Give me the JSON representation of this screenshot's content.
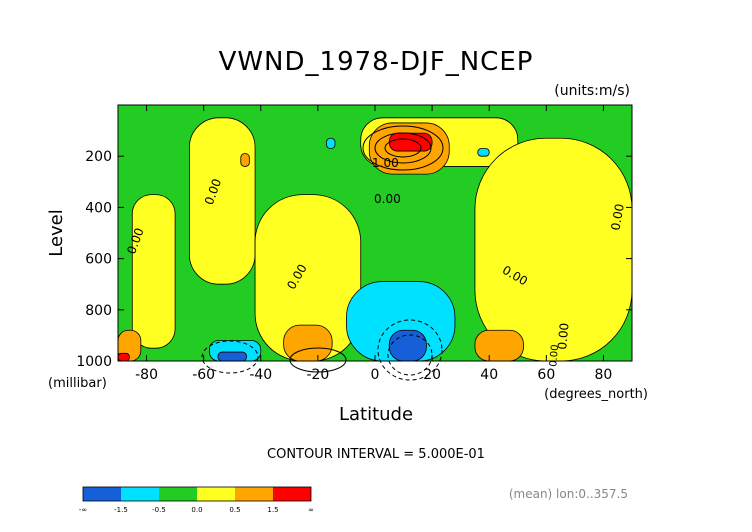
{
  "chart_data": {
    "type": "heatmap",
    "subtype": "filled-contour",
    "title": "VWND_1978-DJF_NCEP",
    "units_label": "(units:m/s)",
    "xlabel": "Latitude",
    "x_units_label": "(degrees_north)",
    "ylabel": "Level",
    "y_units_label": "(millibar)",
    "xlim": [
      -90,
      90
    ],
    "ylim": [
      1000,
      0
    ],
    "x_ticks": [
      -80,
      -60,
      -40,
      -20,
      0,
      20,
      40,
      60,
      80
    ],
    "x_tick_labels": [
      "-80",
      "-60",
      "-40",
      "-20",
      "0",
      "20",
      "40",
      "60",
      "80"
    ],
    "y_ticks": [
      200,
      400,
      600,
      800,
      1000
    ],
    "y_tick_labels": [
      "200",
      "400",
      "600",
      "800",
      "1000"
    ],
    "contour_interval_text": "CONTOUR INTERVAL = 5.000E-01",
    "footnote": "(mean) lon:0..357.5",
    "contour_labels": [
      "1.00",
      "0.00",
      "0.00",
      "0.00",
      "0.00",
      "0.00",
      "0.00",
      "0.00",
      "0.00",
      "0.00"
    ],
    "colorbar": {
      "colors": [
        "#1560d8",
        "#00e0ff",
        "#22cc22",
        "#ffff22",
        "#ffa500",
        "#ff0000"
      ],
      "tick_labels": [
        "-∞",
        "-1.5",
        "-0.5",
        "0.0",
        "0.5",
        "1.5",
        "∞"
      ]
    },
    "regions": [
      {
        "class": 3,
        "value_range": "0.0 to 0.5",
        "lon": [
          -85,
          -70
        ],
        "lev": [
          350,
          950
        ]
      },
      {
        "class": 3,
        "value_range": "0.0 to 0.5",
        "lon": [
          -65,
          -42
        ],
        "lev": [
          50,
          700
        ]
      },
      {
        "class": 3,
        "value_range": "0.0 to 0.5",
        "lon": [
          -5,
          50
        ],
        "lev": [
          50,
          240
        ]
      },
      {
        "class": 3,
        "value_range": "0.0 to 0.5",
        "lon": [
          -42,
          -5
        ],
        "lev": [
          350,
          1000
        ]
      },
      {
        "class": 3,
        "value_range": "0.0 to 0.5",
        "lon": [
          35,
          90
        ],
        "lev": [
          130,
          1000
        ]
      },
      {
        "class": 4,
        "value_range": "0.5 to 1.5",
        "lon": [
          -2,
          26
        ],
        "lev": [
          70,
          270
        ]
      },
      {
        "class": 5,
        "value_range": "> 1.5",
        "lon": [
          5,
          20
        ],
        "lev": [
          110,
          180
        ]
      },
      {
        "class": 4,
        "value_range": "0.5 to 1.5",
        "lon": [
          -47,
          -44
        ],
        "lev": [
          190,
          240
        ]
      },
      {
        "class": 4,
        "value_range": "0.5 to 1.5",
        "lon": [
          -32,
          -15
        ],
        "lev": [
          860,
          1000
        ]
      },
      {
        "class": 4,
        "value_range": "0.5 to 1.5",
        "lon": [
          35,
          52
        ],
        "lev": [
          880,
          1000
        ]
      },
      {
        "class": 4,
        "value_range": "0.5 to 1.5",
        "lon": [
          -90,
          -82
        ],
        "lev": [
          880,
          1000
        ]
      },
      {
        "class": 5,
        "value_range": "> 1.5",
        "lon": [
          -90,
          -86
        ],
        "lev": [
          970,
          1000
        ]
      },
      {
        "class": 1,
        "value_range": "-1.5 to -0.5",
        "lon": [
          -58,
          -40
        ],
        "lev": [
          920,
          1000
        ]
      },
      {
        "class": 0,
        "value_range": "< -1.5",
        "lon": [
          -55,
          -45
        ],
        "lev": [
          965,
          1000
        ]
      },
      {
        "class": 1,
        "value_range": "-1.5 to -0.5",
        "lon": [
          -10,
          28
        ],
        "lev": [
          690,
          1000
        ]
      },
      {
        "class": 0,
        "value_range": "< -1.5",
        "lon": [
          5,
          18
        ],
        "lev": [
          880,
          1000
        ]
      },
      {
        "class": 1,
        "value_range": "-1.5 to -0.5",
        "lon": [
          -17,
          -14
        ],
        "lev": [
          130,
          170
        ]
      },
      {
        "class": 1,
        "value_range": "-1.5 to -0.5",
        "lon": [
          36,
          40
        ],
        "lev": [
          170,
          200
        ]
      }
    ]
  }
}
